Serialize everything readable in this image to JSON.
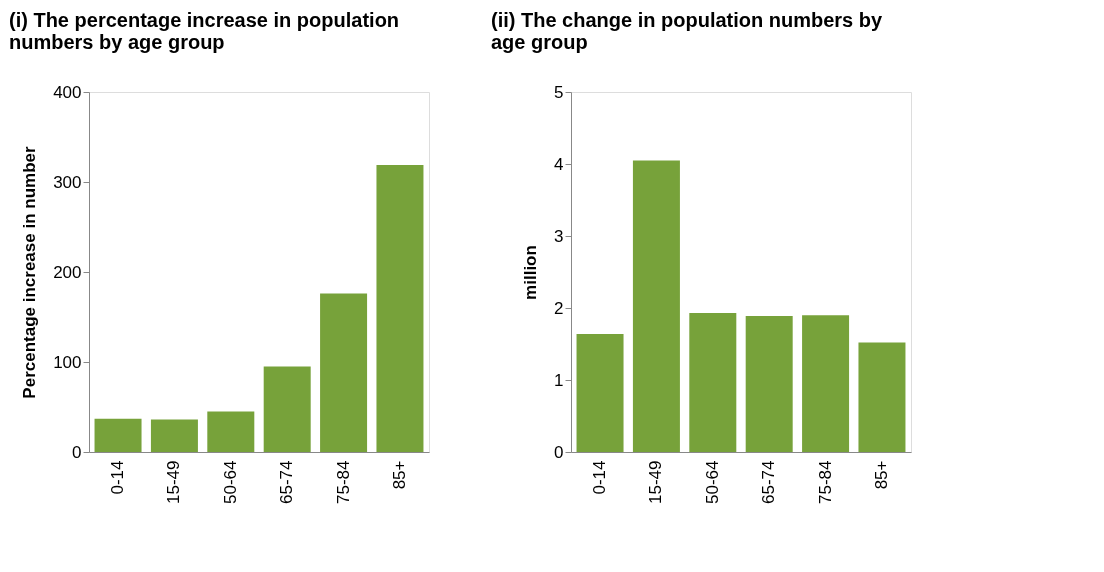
{
  "chart_data": [
    {
      "type": "bar",
      "title": "(i) The percentage increase in population numbers by age group",
      "ylabel": "Percentage increase in number",
      "categories": [
        "0-14",
        "15-49",
        "50-64",
        "65-74",
        "75-84",
        "85+"
      ],
      "series": [
        {
          "color": "#77a23a",
          "values": [
            37,
            36,
            45,
            95,
            176,
            319
          ]
        }
      ],
      "ylim": [
        0,
        400
      ],
      "yticks": [
        0,
        100,
        200,
        300,
        400
      ],
      "grid": false
    },
    {
      "type": "bar",
      "title": "(ii) The change in population numbers by age group",
      "ylabel": "million",
      "categories": [
        "0-14",
        "15-49",
        "50-64",
        "65-74",
        "75-84",
        "85+"
      ],
      "series": [
        {
          "color": "#77a23a",
          "values": [
            1.64,
            4.05,
            1.93,
            1.89,
            1.9,
            1.52
          ]
        }
      ],
      "ylim": [
        0,
        5
      ],
      "yticks": [
        0,
        1,
        2,
        3,
        4,
        5
      ],
      "grid": false
    }
  ]
}
